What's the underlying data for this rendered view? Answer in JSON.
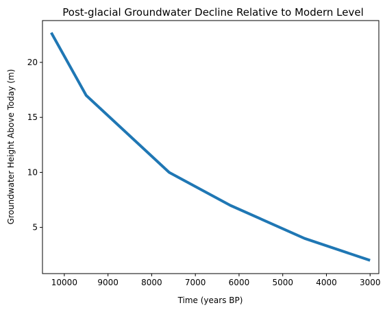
{
  "chart_data": {
    "type": "line",
    "title": "Post-glacial Groundwater Decline Relative to Modern Level",
    "xlabel": "Time (years BP)",
    "ylabel": "Groundwater Height Above Today (m)",
    "x_inverted": true,
    "xlim": [
      10500,
      2800
    ],
    "ylim": [
      0.8,
      23.8
    ],
    "xticks": [
      10000,
      9000,
      8000,
      7000,
      6000,
      5000,
      4000,
      3000
    ],
    "yticks": [
      5,
      10,
      15,
      20
    ],
    "grid": false,
    "series": [
      {
        "x": [
          10300,
          9500,
          7600,
          6200,
          4500,
          3000
        ],
        "y": [
          22.7,
          17.0,
          10.0,
          7.0,
          4.0,
          2.0
        ],
        "color": "#1f77b4"
      }
    ]
  }
}
